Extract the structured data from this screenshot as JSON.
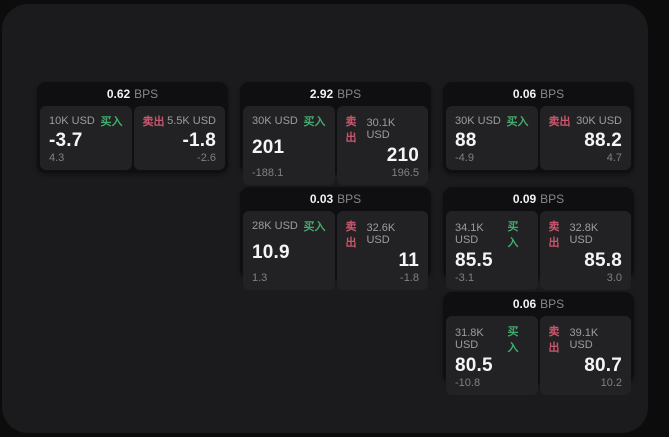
{
  "labels": {
    "bps_unit": "BPS",
    "buy": "买入",
    "sell": "卖出"
  },
  "colors": {
    "buy_green": "#44aa6c",
    "sell_red": "#c9566b",
    "panel": "#1b1b1d",
    "card": "#0f0f11",
    "tile": "#222225"
  },
  "cards": [
    {
      "bps": "0.62",
      "buy": {
        "notional": "10K USD",
        "value": "-3.7",
        "delta": "4.3"
      },
      "sell": {
        "notional": "5.5K USD",
        "value": "-1.8",
        "delta": "-2.6"
      }
    },
    {
      "bps": "2.92",
      "buy": {
        "notional": "30K USD",
        "value": "201",
        "delta": "-188.1"
      },
      "sell": {
        "notional": "30.1K USD",
        "value": "210",
        "delta": "196.5"
      }
    },
    {
      "bps": "0.06",
      "buy": {
        "notional": "30K USD",
        "value": "88",
        "delta": "-4.9"
      },
      "sell": {
        "notional": "30K USD",
        "value": "88.2",
        "delta": "4.7"
      }
    },
    {
      "bps": "0.03",
      "buy": {
        "notional": "28K USD",
        "value": "10.9",
        "delta": "1.3"
      },
      "sell": {
        "notional": "32.6K USD",
        "value": "11",
        "delta": "-1.8"
      }
    },
    {
      "bps": "0.09",
      "buy": {
        "notional": "34.1K USD",
        "value": "85.5",
        "delta": "-3.1"
      },
      "sell": {
        "notional": "32.8K USD",
        "value": "85.8",
        "delta": "3.0"
      }
    },
    {
      "bps": "0.06",
      "buy": {
        "notional": "31.8K USD",
        "value": "80.5",
        "delta": "-10.8"
      },
      "sell": {
        "notional": "39.1K USD",
        "value": "80.7",
        "delta": "10.2"
      }
    }
  ]
}
